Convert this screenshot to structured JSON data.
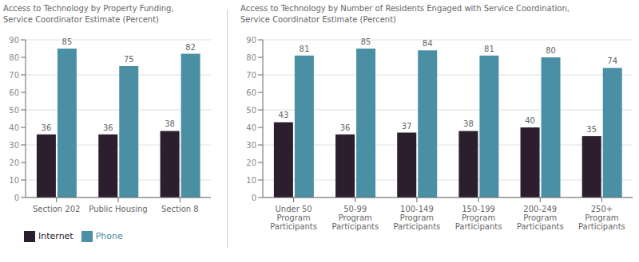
{
  "chart_data": [
    {
      "type": "bar",
      "title": "Access to Technology by Property Funding,\nService Coordinator Estimate (Percent)",
      "categories": [
        "Section 202",
        "Public Housing",
        "Section 8"
      ],
      "series": [
        {
          "name": "Internet",
          "color": "#2d1e2f",
          "values": [
            36,
            36,
            38
          ]
        },
        {
          "name": "Phone",
          "color": "#4a8fa3",
          "values": [
            85,
            75,
            82
          ]
        }
      ],
      "ylim": [
        0,
        90
      ],
      "yticks": [
        0,
        10,
        20,
        30,
        40,
        50,
        60,
        70,
        80,
        90
      ],
      "grid": true,
      "data_labels": true,
      "legend": "lower left"
    },
    {
      "type": "bar",
      "title": "Access to Technology by Number of Residents Engaged with Service Coordination,\nService Coordinator Estimate (Percent)",
      "categories": [
        "Under 50\nProgram\nParticipants",
        "50-99\nProgram\nParticipants",
        "100-149\nProgram\nParticipants",
        "150-199\nProgram\nParticipants",
        "200-249\nProgram\nParticipants",
        "250+\nProgram\nParticipants"
      ],
      "series": [
        {
          "name": "Internet",
          "color": "#2d1e2f",
          "values": [
            43,
            36,
            37,
            38,
            40,
            35
          ]
        },
        {
          "name": "Phone",
          "color": "#4a8fa3",
          "values": [
            81,
            85,
            84,
            81,
            80,
            74
          ]
        }
      ],
      "ylim": [
        0,
        90
      ],
      "yticks": [
        0,
        10,
        20,
        30,
        40,
        50,
        60,
        70,
        80,
        90
      ],
      "grid": true,
      "data_labels": true
    }
  ]
}
